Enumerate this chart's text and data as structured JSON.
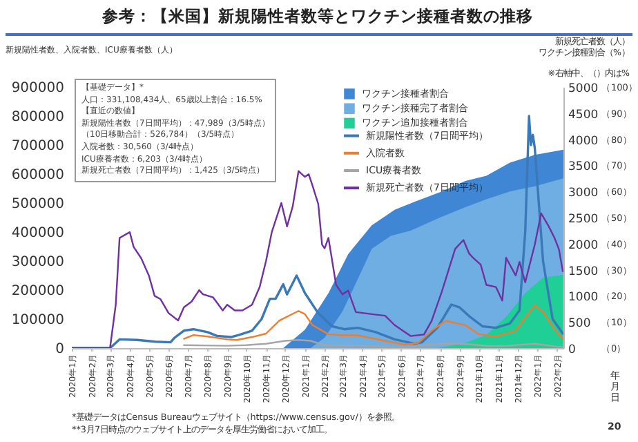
{
  "chart_data": {
    "type": "line",
    "title": "参考：【米国】新規陽性者数等とワクチン接種者数の推移",
    "xlabel": "年月日",
    "ylabel": "新規陽性者数、入院者数、ICU療養者数（人）",
    "y2label": "新規死亡者数（人）ワクチン接種割合（%）",
    "annotations": [
      "【基礎データ】*",
      "人口：331,108,434人、65歳以上割合：16.5%",
      "【直近の数値】",
      "新規陽性者数（7日間平均）：47,989（3/5時点）",
      "（10日移動合計：526,784）（3/5時点）",
      "入院者数：30,560（3/4時点）",
      "ICU療養者数：6,203（3/4時点）",
      "新規死亡者数（7日間平均）：1,425（3/5時点）",
      "※右軸中、（）内は%",
      "*基礎データはCensus Bureauウェブサイト（https://www.census.gov/）を参照。",
      "**3月7日時点のウェブサイト上のデータを厚生労働省において加工。",
      "20"
    ],
    "legend": "top right",
    "xlim": [
      "2020-01-01",
      "2022-02-11"
    ],
    "xticks": [
      {
        "value": "2020-01-01",
        "label": "2020年1月"
      },
      {
        "value": "2020-02-01",
        "label": "2020年2月"
      },
      {
        "value": "2020-03-01",
        "label": "2020年3月"
      },
      {
        "value": "2020-04-01",
        "label": "2020年4月"
      },
      {
        "value": "2020-05-01",
        "label": "2020年5月"
      },
      {
        "value": "2020-06-01",
        "label": "2020年6月"
      },
      {
        "value": "2020-07-01",
        "label": "2020年7月"
      },
      {
        "value": "2020-08-01",
        "label": "2020年8月"
      },
      {
        "value": "2020-09-01",
        "label": "2020年9月"
      },
      {
        "value": "2020-10-01",
        "label": "2020年10月"
      },
      {
        "value": "2020-11-01",
        "label": "2020年11月"
      },
      {
        "value": "2020-12-01",
        "label": "2020年12月"
      },
      {
        "value": "2021-01-01",
        "label": "2021年1月"
      },
      {
        "value": "2021-02-01",
        "label": "2021年2月"
      },
      {
        "value": "2021-03-01",
        "label": "2021年3月"
      },
      {
        "value": "2021-04-01",
        "label": "2021年4月"
      },
      {
        "value": "2021-05-01",
        "label": "2021年5月"
      },
      {
        "value": "2021-06-01",
        "label": "2021年6月"
      },
      {
        "value": "2021-07-01",
        "label": "2021年7月"
      },
      {
        "value": "2021-08-01",
        "label": "2021年8月"
      },
      {
        "value": "2021-09-01",
        "label": "2021年9月"
      },
      {
        "value": "2021-10-01",
        "label": "2021年10月"
      },
      {
        "value": "2021-11-01",
        "label": "2021年11月"
      },
      {
        "value": "2021-12-01",
        "label": "2021年12月"
      },
      {
        "value": "2022-01-01",
        "label": "2022年1月"
      },
      {
        "value": "2022-02-01",
        "label": "2022年2月"
      }
    ],
    "ylim": [
      0,
      900000
    ],
    "yticks": [
      0,
      100000,
      200000,
      300000,
      400000,
      500000,
      600000,
      700000,
      800000,
      900000
    ],
    "y2lim": [
      0,
      5000
    ],
    "y2ticks": [
      0,
      500,
      1000,
      1500,
      2000,
      2500,
      3000,
      3500,
      4000,
      4500,
      5000
    ],
    "y3lim": [
      0,
      100
    ],
    "y3ticks": [
      {
        "value": 0,
        "label": "（0）"
      },
      {
        "value": 10,
        "label": "（10）"
      },
      {
        "value": 20,
        "label": "（20）"
      },
      {
        "value": 30,
        "label": "（30）"
      },
      {
        "value": 40,
        "label": "（40）"
      },
      {
        "value": 50,
        "label": "（50）"
      },
      {
        "value": 60,
        "label": "（60）"
      },
      {
        "value": 70,
        "label": "（70）"
      },
      {
        "value": 80,
        "label": "（80）"
      },
      {
        "value": 90,
        "label": "（90）"
      },
      {
        "value": 100,
        "label": "（100）"
      }
    ],
    "series": [
      {
        "name": "ワクチン接種者割合",
        "type": "area",
        "axis": "y3",
        "color": "#3f87d4",
        "x": [
          "2020-11-28",
          "2021-01-01",
          "2021-02-07",
          "2021-03-10",
          "2021-04-16",
          "2021-05-22",
          "2021-06-22",
          "2021-08-04",
          "2021-09-10",
          "2021-10-13",
          "2021-11-19",
          "2021-12-28",
          "2022-02-11"
        ],
        "values": [
          0,
          7,
          21,
          36,
          47,
          53,
          56,
          60,
          64,
          66,
          71,
          74,
          76
        ]
      },
      {
        "name": "ワクチン接種完了者割合",
        "type": "area",
        "axis": "y3",
        "color": "#6eaee2",
        "x": [
          "2021-01-10",
          "2021-02-01",
          "2021-03-01",
          "2021-04-01",
          "2021-04-16",
          "2021-05-16",
          "2021-06-16",
          "2021-08-01",
          "2021-09-10",
          "2021-10-13",
          "2021-11-19",
          "2021-12-28",
          "2022-02-11"
        ],
        "values": [
          0,
          4,
          14,
          30,
          38,
          43,
          45,
          50,
          54,
          57,
          60,
          62,
          65
        ]
      },
      {
        "name": "ワクチン追加接種者割合",
        "type": "area",
        "axis": "y3",
        "color": "#1fcf96",
        "x": [
          "2021-07-28",
          "2021-09-10",
          "2021-10-13",
          "2021-11-13",
          "2021-12-13",
          "2022-01-10",
          "2022-02-10"
        ],
        "values": [
          0,
          2,
          5,
          12,
          21,
          27,
          28
        ]
      },
      {
        "name": "新規陽性者数（7日間平均）",
        "type": "line",
        "color": "#3a78b8",
        "x": [
          "2020-01-01",
          "2020-03-01",
          "2020-03-16",
          "2020-04-13",
          "2020-05-11",
          "2020-06-04",
          "2020-06-10",
          "2020-06-25",
          "2020-07-10",
          "2020-08-01",
          "2020-08-16",
          "2020-09-07",
          "2020-09-19",
          "2020-10-10",
          "2020-10-25",
          "2020-11-07",
          "2020-11-16",
          "2020-11-28",
          "2020-12-04",
          "2020-12-19",
          "2021-01-01",
          "2021-01-22",
          "2021-02-13",
          "2021-03-04",
          "2021-03-25",
          "2021-04-22",
          "2021-05-22",
          "2021-06-22",
          "2021-07-04",
          "2021-07-28",
          "2021-08-19",
          "2021-09-01",
          "2021-09-16",
          "2021-10-07",
          "2021-10-28",
          "2021-11-19",
          "2021-12-04",
          "2021-12-13",
          "2021-12-19",
          "2021-12-22",
          "2021-12-25",
          "2021-12-28",
          "2022-01-10",
          "2022-01-25",
          "2022-02-10"
        ],
        "values": [
          0,
          0,
          30000,
          28000,
          22000,
          20000,
          35000,
          60000,
          65000,
          55000,
          42000,
          38000,
          45000,
          60000,
          100000,
          170000,
          170000,
          220000,
          185000,
          250000,
          190000,
          120000,
          75000,
          65000,
          70000,
          55000,
          30000,
          15000,
          20000,
          70000,
          150000,
          140000,
          110000,
          75000,
          70000,
          85000,
          130000,
          400000,
          800000,
          700000,
          735000,
          690000,
          300000,
          100000,
          50000
        ]
      },
      {
        "name": "入院者数",
        "type": "line",
        "color": "#ed7d31",
        "x": [
          "2020-06-25",
          "2020-07-10",
          "2020-08-01",
          "2020-09-01",
          "2020-09-16",
          "2020-10-10",
          "2020-11-01",
          "2020-11-22",
          "2020-12-10",
          "2020-12-22",
          "2021-01-01",
          "2021-01-13",
          "2021-02-07",
          "2021-02-28",
          "2021-03-25",
          "2021-05-07",
          "2021-06-07",
          "2021-06-28",
          "2021-07-19",
          "2021-08-10",
          "2021-09-10",
          "2021-10-01",
          "2021-10-28",
          "2021-11-28",
          "2021-12-28",
          "2022-01-10",
          "2022-01-28",
          "2022-02-10"
        ],
        "values": [
          32000,
          45000,
          40000,
          30000,
          28000,
          38000,
          50000,
          95000,
          115000,
          128000,
          117000,
          79000,
          48000,
          44000,
          44000,
          25000,
          12000,
          18000,
          60000,
          94000,
          79000,
          48000,
          40000,
          60000,
          148000,
          125000,
          65000,
          32000
        ]
      },
      {
        "name": "ICU療養者数",
        "type": "line",
        "color": "#a5a5a5",
        "x": [
          "2020-06-25",
          "2020-09-01",
          "2020-10-01",
          "2020-11-01",
          "2020-12-01",
          "2020-12-22",
          "2021-01-10",
          "2021-02-01",
          "2021-03-01",
          "2021-04-01",
          "2021-05-16",
          "2021-06-16",
          "2021-07-16",
          "2021-08-16",
          "2021-09-16",
          "2021-10-16",
          "2021-11-16",
          "2021-12-28",
          "2022-02-01",
          "2022-02-10"
        ],
        "values": [
          10000,
          8000,
          10000,
          15000,
          25000,
          28000,
          25000,
          10000,
          9000,
          8000,
          4000,
          3000,
          12000,
          16000,
          13000,
          7000,
          8000,
          15000,
          5000,
          4000
        ]
      },
      {
        "name": "新規死亡者数（7日間平均）",
        "type": "line",
        "axis": "y2",
        "color": "#7030a0",
        "x": [
          "2020-01-01",
          "2020-03-01",
          "2020-03-10",
          "2020-03-16",
          "2020-04-01",
          "2020-04-07",
          "2020-04-19",
          "2020-05-01",
          "2020-05-10",
          "2020-05-19",
          "2020-06-01",
          "2020-06-16",
          "2020-06-25",
          "2020-07-07",
          "2020-07-19",
          "2020-07-25",
          "2020-08-10",
          "2020-08-25",
          "2020-09-01",
          "2020-09-13",
          "2020-09-25",
          "2020-10-10",
          "2020-10-22",
          "2020-11-01",
          "2020-11-10",
          "2020-11-25",
          "2020-12-04",
          "2020-12-13",
          "2020-12-22",
          "2021-01-01",
          "2021-01-07",
          "2021-01-13",
          "2021-01-22",
          "2021-01-28",
          "2021-02-01",
          "2021-02-07",
          "2021-02-19",
          "2021-03-01",
          "2021-03-10",
          "2021-03-22",
          "2021-04-16",
          "2021-05-07",
          "2021-05-22",
          "2021-06-16",
          "2021-07-07",
          "2021-07-19",
          "2021-08-04",
          "2021-08-25",
          "2021-09-07",
          "2021-09-16",
          "2021-09-22",
          "2021-10-04",
          "2021-10-13",
          "2021-10-28",
          "2021-11-07",
          "2021-11-13",
          "2021-11-28",
          "2021-12-04",
          "2021-12-13",
          "2021-12-28",
          "2022-01-07",
          "2022-01-19",
          "2022-01-28",
          "2022-02-04",
          "2022-02-10"
        ],
        "values": [
          0,
          0,
          830,
          2110,
          2220,
          1940,
          1720,
          1390,
          1000,
          940,
          670,
          530,
          780,
          890,
          1110,
          1030,
          970,
          720,
          830,
          720,
          720,
          830,
          1170,
          1670,
          2220,
          2780,
          2330,
          2720,
          3390,
          3280,
          3330,
          3110,
          2760,
          1980,
          1910,
          2110,
          1210,
          1030,
          1100,
          690,
          650,
          620,
          440,
          230,
          260,
          520,
          1080,
          1900,
          2070,
          1810,
          1730,
          1600,
          1210,
          1170,
          910,
          1730,
          1390,
          1650,
          1260,
          1980,
          2580,
          2330,
          2110,
          1890,
          1470
        ]
      }
    ]
  }
}
